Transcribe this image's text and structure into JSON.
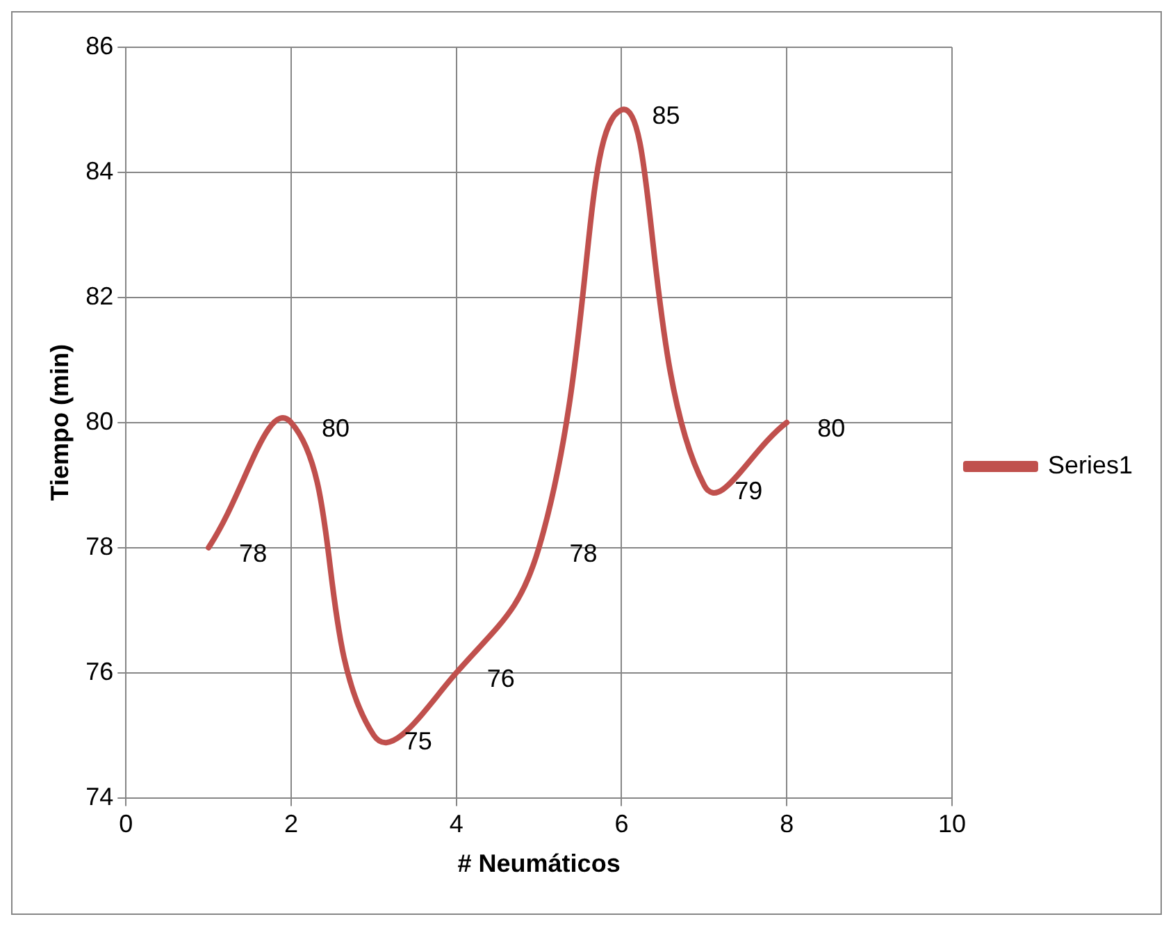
{
  "chart_data": {
    "type": "line",
    "xlabel": "# Neumáticos",
    "ylabel": "Tiempo (min)",
    "x": [
      1,
      2,
      3,
      4,
      5,
      6,
      7,
      8
    ],
    "series": [
      {
        "name": "Series1",
        "color": "#c0504d",
        "values": [
          78,
          80,
          75,
          76,
          78,
          85,
          79,
          80
        ]
      }
    ],
    "xlim": [
      0,
      10
    ],
    "xticks": [
      0,
      2,
      4,
      6,
      8,
      10
    ],
    "ylim": [
      74,
      86
    ],
    "yticks": [
      74,
      76,
      78,
      80,
      82,
      84,
      86
    ],
    "grid": true,
    "legend": "right",
    "marker": "none",
    "line_style": "solid",
    "data_labels": true
  }
}
